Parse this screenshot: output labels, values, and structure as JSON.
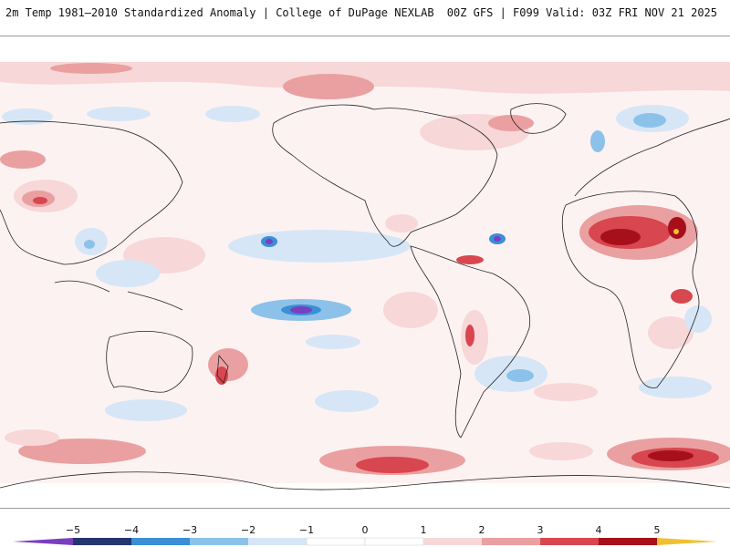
{
  "header": {
    "title_left": "2m Temp 1981–2010 Standardized Anomaly | College of DuPage NEXLAB",
    "title_right": "00Z GFS | F099 Valid: 03Z FRI NOV 21 2025"
  },
  "map": {
    "projection": "global equirectangular",
    "variable": "2m temperature standardized anomaly"
  },
  "colorbar": {
    "tick_labels": [
      "−5",
      "−4",
      "−3",
      "−2",
      "−1",
      "0",
      "1",
      "2",
      "3",
      "4",
      "5"
    ],
    "tick_values": [
      -5,
      -4,
      -3,
      -2,
      -1,
      0,
      1,
      2,
      3,
      4,
      5
    ],
    "colors": [
      "#7a3fbf",
      "#24366e",
      "#3a8fd6",
      "#8cc2ea",
      "#d6e6f6",
      "#ffffff",
      "#f7d7d7",
      "#eaa0a0",
      "#d8464f",
      "#a70f1a",
      "#f0c030"
    ],
    "extend": "both"
  }
}
